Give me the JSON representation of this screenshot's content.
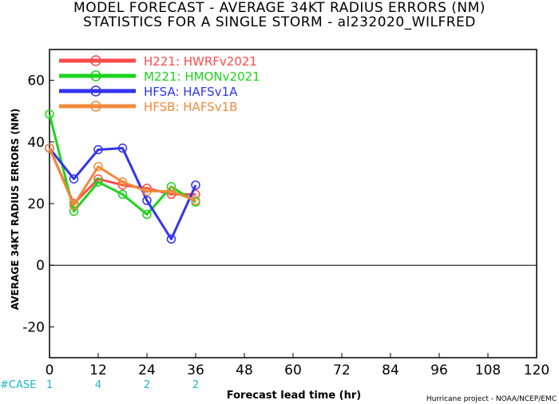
{
  "chart_data": {
    "type": "line",
    "title": "MODEL FORECAST - AVERAGE 34KT RADIUS ERRORS (NM)",
    "subtitle": "STATISTICS FOR A SINGLE STORM - al232020_WILFRED",
    "xlabel": "Forecast lead time (hr)",
    "ylabel": "AVERAGE 34KT RADIUS ERRORS (NM)",
    "xlim": [
      0,
      120
    ],
    "ylim": [
      -30,
      70
    ],
    "xticks": [
      "0",
      "12",
      "24",
      "36",
      "48",
      "60",
      "72",
      "84",
      "96",
      "108",
      "120"
    ],
    "yticks": [
      "60",
      "40",
      "20",
      "0",
      "-20"
    ],
    "zero_line": true,
    "grid": false,
    "legend_position": "top-left",
    "series": [
      {
        "name": "H221: HWRFv2021",
        "color": "#ff4a4a",
        "x": [
          0,
          6,
          12,
          18,
          24,
          30,
          36
        ],
        "y": [
          38,
          20,
          28,
          26,
          25,
          23,
          23
        ]
      },
      {
        "name": "M221: HMONv2021",
        "color": "#1cd41c",
        "x": [
          0,
          6,
          12,
          18,
          24,
          30,
          36
        ],
        "y": [
          49,
          17.5,
          27,
          23,
          16.5,
          25.5,
          20.5
        ]
      },
      {
        "name": "HFSA: HAFSv1A",
        "color": "#3333ee",
        "x": [
          0,
          6,
          12,
          18,
          24,
          30,
          36
        ],
        "y": [
          38,
          28,
          37.5,
          38,
          21,
          8.5,
          26
        ]
      },
      {
        "name": "HFSB: HAFSv1B",
        "color": "#f08a3a",
        "x": [
          0,
          6,
          12,
          18,
          24,
          30,
          36
        ],
        "y": [
          38,
          19.5,
          32,
          27,
          24,
          24,
          21
        ]
      }
    ],
    "case_label": "#CASE",
    "case_counts": [
      {
        "x": 0,
        "n": "1"
      },
      {
        "x": 12,
        "n": "4"
      },
      {
        "x": 24,
        "n": "2"
      },
      {
        "x": 36,
        "n": "2"
      }
    ]
  },
  "credit": "Hurricane project - NOAA/NCEP/EMC"
}
